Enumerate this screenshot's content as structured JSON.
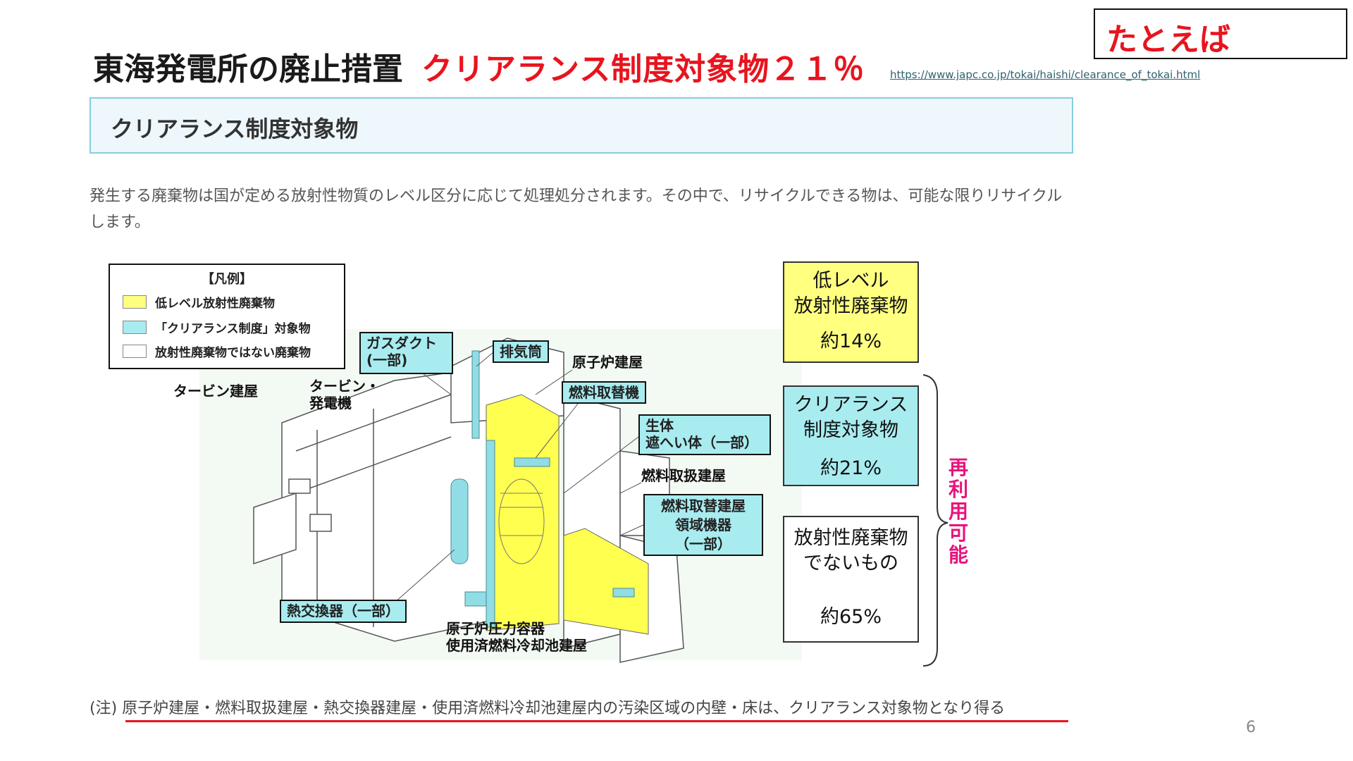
{
  "title": {
    "main": "東海発電所の廃止措置",
    "highlight": "クリアランス制度対象物２１％"
  },
  "source_url": "https://www.japc.co.jp/tokai/haishi/clearance_of_tokai.html",
  "example_label": "たとえば",
  "section_header": "クリアランス制度対象物",
  "intro_text": "発生する廃棄物は国が定める放射性物質のレベル区分に応じて処理処分されます。その中で、リサイクルできる物は、可能な限りリサイクルします。",
  "legend": {
    "title": "【凡例】",
    "items": [
      {
        "label": "低レベル放射性廃棄物",
        "color": "#ffff80"
      },
      {
        "label": "「クリアランス制度」対象物",
        "color": "#a8ecf0"
      },
      {
        "label": "放射性廃棄物ではない廃棄物",
        "color": "#ffffff"
      }
    ]
  },
  "diagram_labels": {
    "gas_duct": [
      "ガスダクト",
      "(一部)"
    ],
    "stack": "排気筒",
    "reactor_building": "原子炉建屋",
    "fuel_machine": "燃料取替機",
    "bio_shield": [
      "生体",
      "遮へい体（一部）"
    ],
    "fuel_handling_building": "燃料取扱建屋",
    "fuel_replacement_equipment": [
      "燃料取替建屋",
      "領域機器",
      "（一部）"
    ],
    "turbine_building": "タービン建屋",
    "turbine_generator": [
      "タービン・",
      "発電機"
    ],
    "heat_exchanger": "熱交換器（一部）",
    "pressure_vessel": "原子炉圧力容器",
    "spent_fuel_pool": "使用済燃料冷却池建屋"
  },
  "categories": [
    {
      "lines": [
        "低レベル",
        "放射性廃棄物"
      ],
      "percent": "約14%",
      "color": "#ffff80"
    },
    {
      "lines": [
        "クリアランス",
        "制度対象物"
      ],
      "percent": "約21%",
      "color": "#a8ecf0"
    },
    {
      "lines": [
        "放射性廃棄物",
        "でないもの"
      ],
      "percent": "約65%",
      "color": "#ffffff"
    }
  ],
  "reuse_label": "再利用可能",
  "note": "(注) 原子炉建屋・燃料取扱建屋・熱交換器建屋・使用済燃料冷却池建屋内の汚染区域の内壁・床は、クリアランス対象物となり得る",
  "page_number": "6",
  "colors": {
    "accent_red": "#e8141e",
    "reuse_pink": "#e8147a",
    "header_border": "#86cde0"
  }
}
